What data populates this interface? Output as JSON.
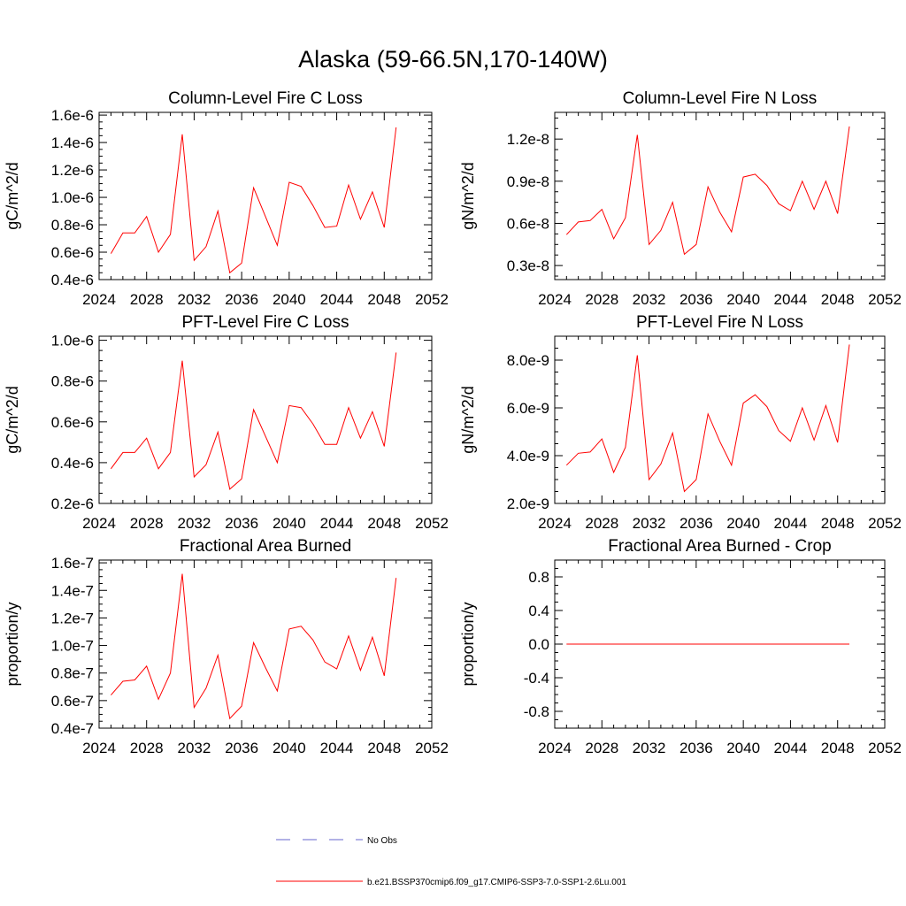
{
  "title": "Alaska (59-66.5N,170-140W)",
  "colors": {
    "series": "#ff0000",
    "no_obs": "#6666cc",
    "axis": "#000000"
  },
  "legend": {
    "position": "bottom-center",
    "entries": [
      {
        "label": "No Obs",
        "style": "dashed",
        "color": "#6666cc"
      },
      {
        "label": "b.e21.BSSP370cmip6.f09_g17.CMIP6-SSP3-7.0-SSP1-2.6Lu.001",
        "style": "solid",
        "color": "#ff0000"
      }
    ]
  },
  "chart_data": [
    {
      "type": "line",
      "title": "Column-Level Fire C Loss",
      "ylabel": "gC/m^2/d",
      "xlim": [
        2024,
        2052
      ],
      "ylim": [
        4e-07,
        1.62e-06
      ],
      "xticks": [
        2024,
        2028,
        2032,
        2036,
        2040,
        2044,
        2048,
        2052
      ],
      "yticks": [
        4e-07,
        6e-07,
        8e-07,
        1e-06,
        1.2e-06,
        1.4e-06,
        1.6e-06
      ],
      "ytick_labels": [
        "0.4e-6",
        "0.6e-6",
        "0.8e-6",
        "1.0e-6",
        "1.2e-6",
        "1.4e-6",
        "1.6e-6"
      ],
      "x": [
        2025,
        2026,
        2027,
        2028,
        2029,
        2030,
        2031,
        2032,
        2033,
        2034,
        2035,
        2036,
        2037,
        2038,
        2039,
        2040,
        2041,
        2042,
        2043,
        2044,
        2045,
        2046,
        2047,
        2048,
        2049
      ],
      "series": [
        {
          "values": [
            5.9e-07,
            7.4e-07,
            7.4e-07,
            8.6e-07,
            6e-07,
            7.3e-07,
            1.46e-06,
            5.4e-07,
            6.4e-07,
            9e-07,
            4.5e-07,
            5.2e-07,
            1.07e-06,
            8.6e-07,
            6.5e-07,
            1.11e-06,
            1.08e-06,
            9.4e-07,
            7.8e-07,
            7.9e-07,
            1.09e-06,
            8.4e-07,
            1.04e-06,
            7.8e-07,
            1.51e-06
          ]
        }
      ]
    },
    {
      "type": "line",
      "title": "Column-Level Fire N Loss",
      "ylabel": "gN/m^2/d",
      "xlim": [
        2024,
        2052
      ],
      "ylim": [
        2e-09,
        1.39e-08
      ],
      "xticks": [
        2024,
        2028,
        2032,
        2036,
        2040,
        2044,
        2048,
        2052
      ],
      "yticks": [
        3e-09,
        6e-09,
        9e-09,
        1.2e-08
      ],
      "ytick_labels": [
        "0.3e-8",
        "0.6e-8",
        "0.9e-8",
        "1.2e-8"
      ],
      "x": [
        2025,
        2026,
        2027,
        2028,
        2029,
        2030,
        2031,
        2032,
        2033,
        2034,
        2035,
        2036,
        2037,
        2038,
        2039,
        2040,
        2041,
        2042,
        2043,
        2044,
        2045,
        2046,
        2047,
        2048,
        2049
      ],
      "series": [
        {
          "values": [
            5.2e-09,
            6.1e-09,
            6.2e-09,
            7e-09,
            4.9e-09,
            6.4e-09,
            1.23e-08,
            4.5e-09,
            5.5e-09,
            7.5e-09,
            3.8e-09,
            4.5e-09,
            8.6e-09,
            6.8e-09,
            5.4e-09,
            9.3e-09,
            9.5e-09,
            8.7e-09,
            7.4e-09,
            6.9e-09,
            9e-09,
            7e-09,
            9e-09,
            6.7e-09,
            1.29e-08
          ]
        }
      ]
    },
    {
      "type": "line",
      "title": "PFT-Level Fire C Loss",
      "ylabel": "gC/m^2/d",
      "xlim": [
        2024,
        2052
      ],
      "ylim": [
        2e-07,
        1.02e-06
      ],
      "xticks": [
        2024,
        2028,
        2032,
        2036,
        2040,
        2044,
        2048,
        2052
      ],
      "yticks": [
        2e-07,
        4e-07,
        6e-07,
        8e-07,
        1e-06
      ],
      "ytick_labels": [
        "0.2e-6",
        "0.4e-6",
        "0.6e-6",
        "0.8e-6",
        "1.0e-6"
      ],
      "x": [
        2025,
        2026,
        2027,
        2028,
        2029,
        2030,
        2031,
        2032,
        2033,
        2034,
        2035,
        2036,
        2037,
        2038,
        2039,
        2040,
        2041,
        2042,
        2043,
        2044,
        2045,
        2046,
        2047,
        2048,
        2049
      ],
      "series": [
        {
          "values": [
            3.7e-07,
            4.5e-07,
            4.5e-07,
            5.2e-07,
            3.7e-07,
            4.5e-07,
            9e-07,
            3.3e-07,
            3.9e-07,
            5.5e-07,
            2.7e-07,
            3.2e-07,
            6.6e-07,
            5.3e-07,
            4e-07,
            6.8e-07,
            6.7e-07,
            5.9e-07,
            4.9e-07,
            4.9e-07,
            6.7e-07,
            5.2e-07,
            6.5e-07,
            4.8e-07,
            9.4e-07
          ]
        }
      ]
    },
    {
      "type": "line",
      "title": "PFT-Level Fire N Loss",
      "ylabel": "gN/m^2/d",
      "xlim": [
        2024,
        2052
      ],
      "ylim": [
        2e-09,
        9e-09
      ],
      "xticks": [
        2024,
        2028,
        2032,
        2036,
        2040,
        2044,
        2048,
        2052
      ],
      "yticks": [
        2e-09,
        4e-09,
        6e-09,
        8e-09
      ],
      "ytick_labels": [
        "2.0e-9",
        "4.0e-9",
        "6.0e-9",
        "8.0e-9"
      ],
      "x": [
        2025,
        2026,
        2027,
        2028,
        2029,
        2030,
        2031,
        2032,
        2033,
        2034,
        2035,
        2036,
        2037,
        2038,
        2039,
        2040,
        2041,
        2042,
        2043,
        2044,
        2045,
        2046,
        2047,
        2048,
        2049
      ],
      "series": [
        {
          "values": [
            3.6e-09,
            4.1e-09,
            4.15e-09,
            4.7e-09,
            3.3e-09,
            4.35e-09,
            8.2e-09,
            3e-09,
            3.65e-09,
            4.95e-09,
            2.5e-09,
            3e-09,
            5.75e-09,
            4.6e-09,
            3.6e-09,
            6.2e-09,
            6.55e-09,
            6.05e-09,
            5.05e-09,
            4.6e-09,
            6e-09,
            4.65e-09,
            6.1e-09,
            4.55e-09,
            8.65e-09
          ]
        }
      ]
    },
    {
      "type": "line",
      "title": "Fractional Area Burned",
      "ylabel": "proportion/y",
      "xlim": [
        2024,
        2052
      ],
      "ylim": [
        4e-08,
        1.62e-07
      ],
      "xticks": [
        2024,
        2028,
        2032,
        2036,
        2040,
        2044,
        2048,
        2052
      ],
      "yticks": [
        4e-08,
        6e-08,
        8e-08,
        1e-07,
        1.2e-07,
        1.4e-07,
        1.6e-07
      ],
      "ytick_labels": [
        "0.4e-7",
        "0.6e-7",
        "0.8e-7",
        "1.0e-7",
        "1.2e-7",
        "1.4e-7",
        "1.6e-7"
      ],
      "x": [
        2025,
        2026,
        2027,
        2028,
        2029,
        2030,
        2031,
        2032,
        2033,
        2034,
        2035,
        2036,
        2037,
        2038,
        2039,
        2040,
        2041,
        2042,
        2043,
        2044,
        2045,
        2046,
        2047,
        2048,
        2049
      ],
      "series": [
        {
          "values": [
            6.4e-08,
            7.4e-08,
            7.5e-08,
            8.5e-08,
            6.1e-08,
            8e-08,
            1.52e-07,
            5.5e-08,
            6.9e-08,
            9.3e-08,
            4.7e-08,
            5.6e-08,
            1.02e-07,
            8.4e-08,
            6.7e-08,
            1.12e-07,
            1.14e-07,
            1.04e-07,
            8.8e-08,
            8.3e-08,
            1.07e-07,
            8.2e-08,
            1.06e-07,
            7.8e-08,
            1.49e-07
          ]
        }
      ]
    },
    {
      "type": "line",
      "title": "Fractional Area Burned - Crop",
      "ylabel": "proportion/y",
      "xlim": [
        2024,
        2052
      ],
      "ylim": [
        -1.0,
        1.0
      ],
      "xticks": [
        2024,
        2028,
        2032,
        2036,
        2040,
        2044,
        2048,
        2052
      ],
      "yticks": [
        -0.8,
        -0.4,
        0.0,
        0.4,
        0.8
      ],
      "ytick_labels": [
        "-0.8",
        "-0.4",
        "0.0",
        "0.4",
        "0.8"
      ],
      "x": [
        2025,
        2026,
        2027,
        2028,
        2029,
        2030,
        2031,
        2032,
        2033,
        2034,
        2035,
        2036,
        2037,
        2038,
        2039,
        2040,
        2041,
        2042,
        2043,
        2044,
        2045,
        2046,
        2047,
        2048,
        2049
      ],
      "series": [
        {
          "values": [
            0,
            0,
            0,
            0,
            0,
            0,
            0,
            0,
            0,
            0,
            0,
            0,
            0,
            0,
            0,
            0,
            0,
            0,
            0,
            0,
            0,
            0,
            0,
            0,
            0
          ]
        }
      ]
    }
  ]
}
